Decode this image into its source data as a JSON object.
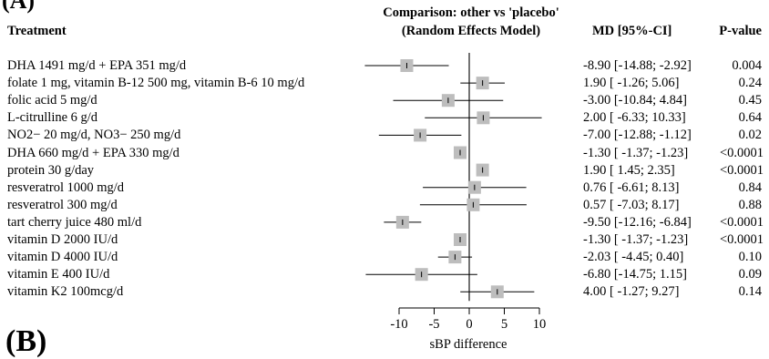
{
  "panel_labels": {
    "top": "(A)",
    "bottom": "(B)"
  },
  "headers": {
    "treatment": "Treatment",
    "comparison_line1": "Comparison: other vs 'placebo'",
    "comparison_line2": "(Random Effects Model)",
    "md_ci": "MD [95%-CI]",
    "pvalue": "P-value"
  },
  "chart_data": {
    "type": "forest",
    "xlabel": "sBP difference",
    "xlim": [
      -10,
      10
    ],
    "x_ticks": [
      -10,
      -5,
      0,
      5,
      10
    ],
    "x_tick_labels": [
      "-10",
      "-5",
      "0",
      "5",
      "10"
    ],
    "reference_line": 0,
    "marker_color": "#bdbdbd",
    "rows": [
      {
        "treatment": "DHA 1491 mg/d + EPA 351 mg/d",
        "md": -8.9,
        "lower": -14.88,
        "upper": -2.92,
        "ci_text": "-8.90 [-14.88; -2.92]",
        "p": "0.004"
      },
      {
        "treatment": "folate 1 mg, vitamin B-12 500 mg, vitamin B-6 10 mg/d",
        "md": 1.9,
        "lower": -1.26,
        "upper": 5.06,
        "ci_text": "1.90 [ -1.26; 5.06]",
        "p": "0.24"
      },
      {
        "treatment": "folic acid 5 mg/d",
        "md": -3.0,
        "lower": -10.84,
        "upper": 4.84,
        "ci_text": "-3.00 [-10.84; 4.84]",
        "p": "0.45"
      },
      {
        "treatment": "L-citrulline 6 g/d",
        "md": 2.0,
        "lower": -6.33,
        "upper": 10.33,
        "ci_text": "2.00 [ -6.33; 10.33]",
        "p": "0.64"
      },
      {
        "treatment": "NO2− 20 mg/d, NO3− 250 mg/d",
        "md": -7.0,
        "lower": -12.88,
        "upper": -1.12,
        "ci_text": "-7.00 [-12.88; -1.12]",
        "p": "0.02"
      },
      {
        "treatment": "DHA 660 mg/d + EPA 330 mg/d",
        "md": -1.3,
        "lower": -1.37,
        "upper": -1.23,
        "ci_text": "-1.30 [ -1.37; -1.23]",
        "p": "<0.0001"
      },
      {
        "treatment": "protein 30 g/day",
        "md": 1.9,
        "lower": 1.45,
        "upper": 2.35,
        "ci_text": "1.90 [ 1.45; 2.35]",
        "p": "<0.0001"
      },
      {
        "treatment": "resveratrol 1000 mg/d",
        "md": 0.76,
        "lower": -6.61,
        "upper": 8.13,
        "ci_text": "0.76 [ -6.61; 8.13]",
        "p": "0.84"
      },
      {
        "treatment": "resveratrol 300 mg/d",
        "md": 0.57,
        "lower": -7.03,
        "upper": 8.17,
        "ci_text": "0.57 [ -7.03; 8.17]",
        "p": "0.88"
      },
      {
        "treatment": "tart cherry juice 480 ml/d",
        "md": -9.5,
        "lower": -12.16,
        "upper": -6.84,
        "ci_text": "-9.50 [-12.16; -6.84]",
        "p": "<0.0001"
      },
      {
        "treatment": "vitamin D 2000 IU/d",
        "md": -1.3,
        "lower": -1.37,
        "upper": -1.23,
        "ci_text": "-1.30 [ -1.37; -1.23]",
        "p": "<0.0001"
      },
      {
        "treatment": "vitamin D 4000 IU/d",
        "md": -2.03,
        "lower": -4.45,
        "upper": 0.4,
        "ci_text": "-2.03 [ -4.45; 0.40]",
        "p": "0.10"
      },
      {
        "treatment": "vitamin E 400 IU/d",
        "md": -6.8,
        "lower": -14.75,
        "upper": 1.15,
        "ci_text": "-6.80 [-14.75; 1.15]",
        "p": "0.09"
      },
      {
        "treatment": "vitamin K2 100mcg/d",
        "md": 4.0,
        "lower": -1.27,
        "upper": 9.27,
        "ci_text": "4.00 [ -1.27; 9.27]",
        "p": "0.14"
      }
    ]
  }
}
